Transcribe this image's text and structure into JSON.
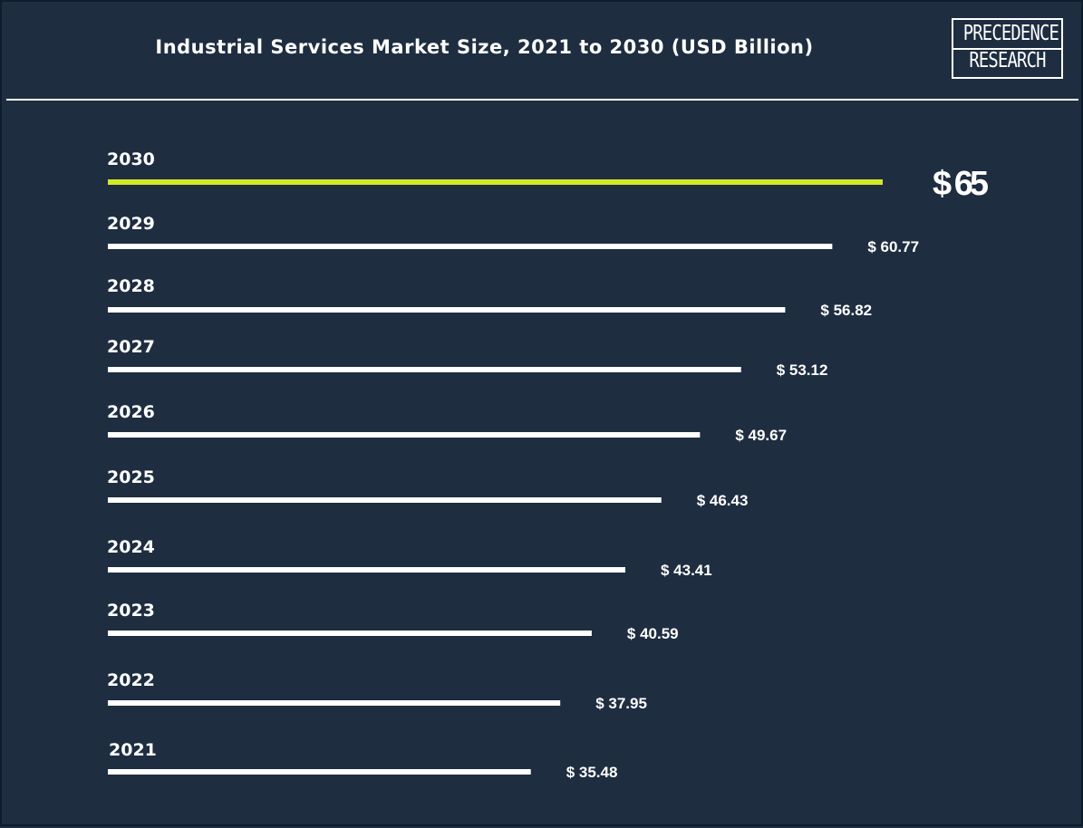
{
  "header": {
    "title": "Industrial Services Market Size, 2021 to 2030 (USD Billion)",
    "logo_line1": "PRECEDENCE",
    "logo_line2": "RESEARCH"
  },
  "chart_data": {
    "type": "bar",
    "orientation": "horizontal",
    "title": "Industrial Services Market Size, 2021 to 2030 (USD Billion)",
    "categories": [
      "2030",
      "2029",
      "2028",
      "2027",
      "2026",
      "2025",
      "2024",
      "2023",
      "2022",
      "2021"
    ],
    "values": [
      65,
      60.77,
      56.82,
      53.12,
      49.67,
      46.43,
      43.41,
      40.59,
      37.95,
      35.48
    ],
    "value_labels": [
      "$ 65",
      "$ 60.77",
      "$ 56.82",
      "$ 53.12",
      "$ 49.67",
      "$ 46.43",
      "$ 43.41",
      "$ 40.59",
      "$ 37.95",
      "$ 35.48"
    ],
    "xlabel": "",
    "ylabel": "",
    "grid": false,
    "legend": "none",
    "highlight_category": "2030",
    "colors": {
      "background": "#1e2d40",
      "bar": "#ffffff",
      "highlight_bar": "#d4e82a",
      "text": "#ffffff"
    }
  }
}
